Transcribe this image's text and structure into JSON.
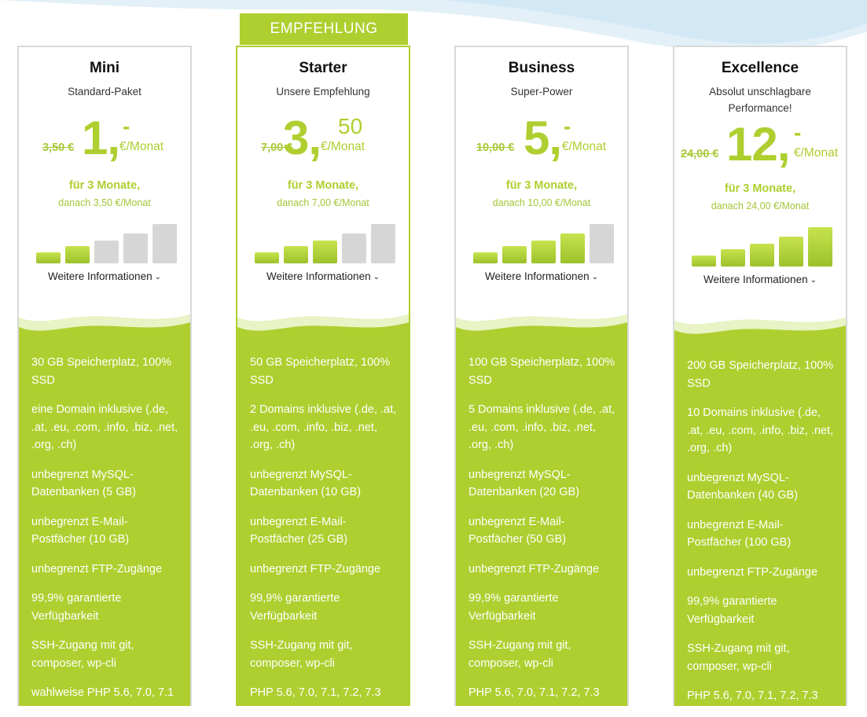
{
  "ribbon": "EMPFEHLUNG",
  "colors": {
    "accent": "#aecf2f",
    "bar_off": "#d6d6d6"
  },
  "plans": [
    {
      "name": "Mini",
      "subtitle": "Standard-Paket",
      "old_price": "3,50 €",
      "price_main": "1,",
      "price_cents": "-",
      "price_unit": "€/Monat",
      "term": "für 3 Monate,",
      "after": "danach 3,50 €/Monat",
      "level": 2,
      "more": "Weitere Informationen",
      "features": [
        "30 GB Speicherplatz, 100% SSD",
        "eine Domain inklusive (.de, .at, .eu, .com, .info, .biz, .net, .org, .ch)",
        "unbegrenzt MySQL-Datenbanken (5 GB)",
        "unbegrenzt E-Mail-Postfächer (10 GB)",
        "unbegrenzt FTP-Zugänge",
        "99,9% garantierte Verfügbarkeit",
        "SSH-Zugang mit git, composer, wp-cli",
        "wahlweise PHP 5.6, 7.0, 7.1"
      ]
    },
    {
      "name": "Starter",
      "subtitle": "Unsere Empfehlung",
      "old_price": "7,00 €",
      "price_main": "3,",
      "price_cents": "50",
      "price_unit": "€/Monat",
      "term": "für 3 Monate,",
      "after": "danach 7,00 €/Monat",
      "level": 3,
      "more": "Weitere Informationen",
      "features": [
        "50 GB Speicherplatz, 100% SSD",
        "2 Domains inklusive (.de, .at, .eu, .com, .info, .biz, .net, .org, .ch)",
        "unbegrenzt MySQL-Datenbanken (10 GB)",
        "unbegrenzt E-Mail-Postfächer (25 GB)",
        "unbegrenzt FTP-Zugänge",
        "99,9% garantierte Verfügbarkeit",
        "SSH-Zugang mit git, composer, wp-cli",
        "PHP 5.6, 7.0, 7.1, 7.2, 7.3"
      ]
    },
    {
      "name": "Business",
      "subtitle": "Super-Power",
      "old_price": "10,00 €",
      "price_main": "5,",
      "price_cents": "-",
      "price_unit": "€/Monat",
      "term": "für 3 Monate,",
      "after": "danach 10,00 €/Monat",
      "level": 4,
      "more": "Weitere Informationen",
      "features": [
        "100 GB Speicherplatz, 100% SSD",
        "5 Domains inklusive (.de, .at, .eu, .com, .info, .biz, .net, .org, .ch)",
        "unbegrenzt MySQL-Datenbanken (20 GB)",
        "unbegrenzt E-Mail-Postfächer (50 GB)",
        "unbegrenzt FTP-Zugänge",
        "99,9% garantierte Verfügbarkeit",
        "SSH-Zugang mit git, composer, wp-cli",
        "PHP 5.6, 7.0, 7.1, 7.2, 7.3"
      ]
    },
    {
      "name": "Excellence",
      "subtitle": "Absolut unschlagbare Performance!",
      "old_price": "24,00 €",
      "price_main": "12,",
      "price_cents": "-",
      "price_unit": "€/Monat",
      "term": "für 3 Monate,",
      "after": "danach 24,00 €/Monat",
      "level": 5,
      "more": "Weitere Informationen",
      "features": [
        "200 GB Speicherplatz, 100% SSD",
        "10 Domains inklusive (.de, .at, .eu, .com, .info, .biz, .net, .org, .ch)",
        "unbegrenzt MySQL-Datenbanken (40 GB)",
        "unbegrenzt E-Mail-Postfächer (100 GB)",
        "unbegrenzt FTP-Zugänge",
        "99,9% garantierte Verfügbarkeit",
        "SSH-Zugang mit git, composer, wp-cli",
        "PHP 5.6, 7.0, 7.1, 7.2, 7.3"
      ]
    }
  ]
}
